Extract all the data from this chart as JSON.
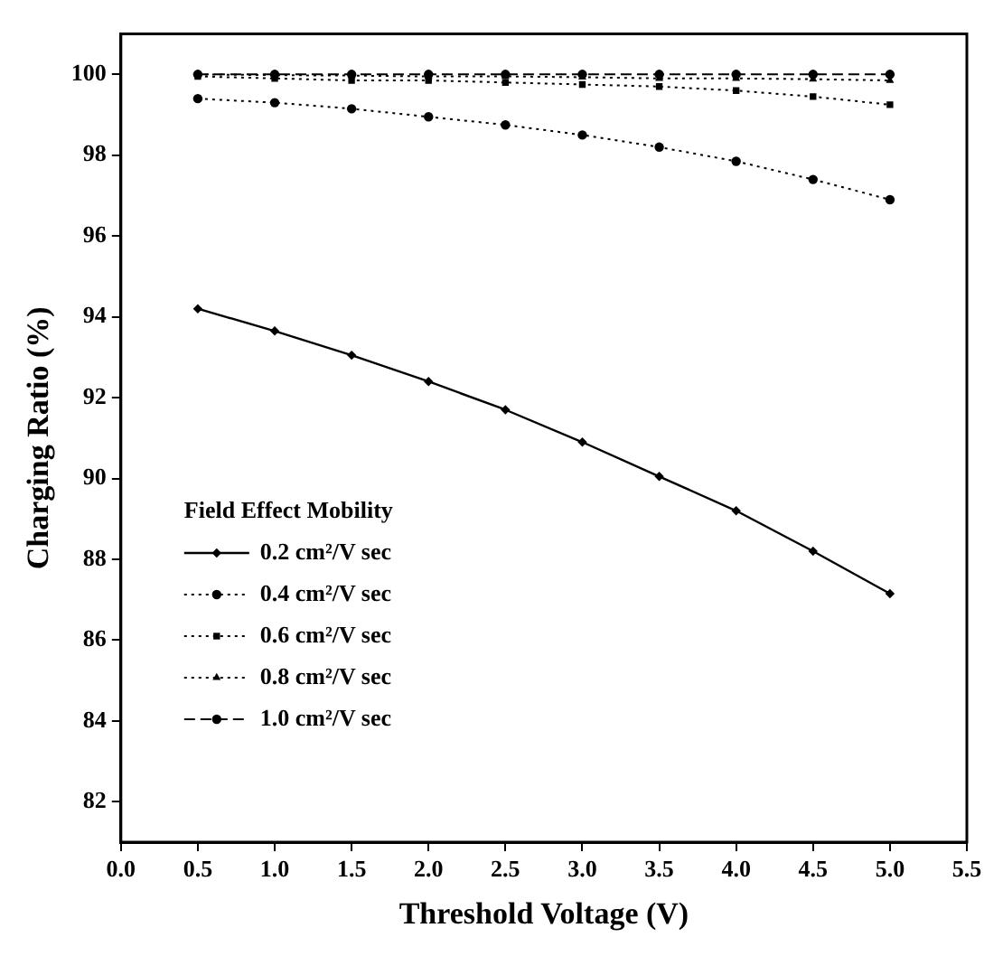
{
  "chart_data": {
    "type": "line",
    "xlabel": "Threshold Voltage (V)",
    "ylabel": "Charging Ratio (%)",
    "legend_title": "Field Effect Mobility",
    "legend": "bottom left",
    "grid": false,
    "x": [
      0.5,
      1.0,
      1.5,
      2.0,
      2.5,
      3.0,
      3.5,
      4.0,
      4.5,
      5.0
    ],
    "xlim": [
      0,
      5.5
    ],
    "xticks": [
      {
        "value": 0,
        "label": "0.0"
      },
      {
        "value": 0.5,
        "label": "0.5"
      },
      {
        "value": 1,
        "label": "1.0"
      },
      {
        "value": 1.5,
        "label": "1.5"
      },
      {
        "value": 2,
        "label": "2.0"
      },
      {
        "value": 2.5,
        "label": "2.5"
      },
      {
        "value": 3,
        "label": "3.0"
      },
      {
        "value": 3.5,
        "label": "3.5"
      },
      {
        "value": 4,
        "label": "4.0"
      },
      {
        "value": 4.5,
        "label": "4.5"
      },
      {
        "value": 5,
        "label": "5.0"
      },
      {
        "value": 5.5,
        "label": "5.5"
      }
    ],
    "ylim": [
      81,
      101
    ],
    "yticks": [
      82,
      84,
      86,
      88,
      90,
      92,
      94,
      96,
      98,
      100
    ],
    "series": [
      {
        "name": "0.2 cm²/V sec",
        "color": "#000000",
        "marker": "diamond",
        "line_style": "solid",
        "values": [
          94.2,
          93.65,
          93.05,
          92.4,
          91.7,
          90.9,
          90.05,
          89.2,
          88.2,
          87.15
        ]
      },
      {
        "name": "0.4 cm²/V sec",
        "color": "#000000",
        "marker": "circle",
        "line_style": "dotted",
        "values": [
          99.4,
          99.3,
          99.15,
          98.95,
          98.75,
          98.5,
          98.2,
          97.85,
          97.4,
          96.9
        ]
      },
      {
        "name": "0.6 cm²/V sec",
        "color": "#000000",
        "marker": "square",
        "line_style": "dotted",
        "values": [
          99.95,
          99.9,
          99.85,
          99.85,
          99.8,
          99.75,
          99.7,
          99.6,
          99.45,
          99.25
        ]
      },
      {
        "name": "0.8 cm²/V sec",
        "color": "#000000",
        "marker": "triangle",
        "line_style": "dotted",
        "values": [
          100,
          99.98,
          99.97,
          99.95,
          99.95,
          99.93,
          99.9,
          99.9,
          99.88,
          99.85
        ]
      },
      {
        "name": "1.0 cm²/V sec",
        "color": "#000000",
        "marker": "circle",
        "line_style": "dashed",
        "values": [
          100,
          100,
          100,
          100,
          100,
          100,
          100,
          100,
          100,
          100
        ]
      }
    ]
  }
}
